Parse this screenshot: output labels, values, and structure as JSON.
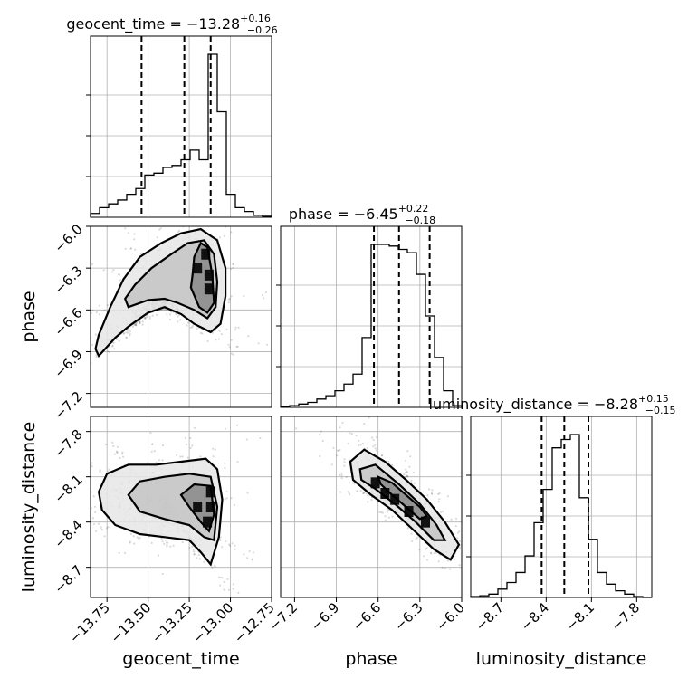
{
  "chart_data": {
    "type": "corner",
    "grid": true,
    "parameters": [
      {
        "name": "geocent_time",
        "median": -13.28,
        "plus": 0.16,
        "minus": 0.26,
        "title_main": "geocent_time = −13.28",
        "title_sup": "+0.16",
        "title_sub": "−0.26",
        "range": [
          -13.85,
          -12.75
        ],
        "ticks": [
          -13.75,
          -13.5,
          -13.25,
          -13.0,
          -12.75
        ],
        "tick_labels": [
          "−13.75",
          "−13.50",
          "−13.25",
          "−13.00",
          "−12.75"
        ],
        "quantiles": [
          -13.54,
          -13.28,
          -13.12
        ],
        "hist_edges": [
          -13.85,
          -13.795,
          -13.74,
          -13.685,
          -13.63,
          -13.575,
          -13.52,
          -13.465,
          -13.41,
          -13.355,
          -13.3,
          -13.245,
          -13.19,
          -13.135,
          -13.08,
          -13.025,
          -12.97,
          -12.915,
          -12.86,
          -12.805,
          -12.75
        ],
        "hist_counts": [
          0.02,
          0.05,
          0.07,
          0.09,
          0.12,
          0.15,
          0.22,
          0.23,
          0.26,
          0.27,
          0.3,
          0.35,
          0.3,
          0.85,
          0.55,
          0.12,
          0.05,
          0.03,
          0.01,
          0.005
        ]
      },
      {
        "name": "phase",
        "median": -6.45,
        "plus": 0.22,
        "minus": 0.18,
        "title_main": "phase = −6.45",
        "title_sup": "+0.22",
        "title_sub": "−0.18",
        "range": [
          -7.3,
          -6.0
        ],
        "ticks": [
          -7.2,
          -6.9,
          -6.6,
          -6.3,
          -6.0
        ],
        "tick_labels": [
          "−7.2",
          "−6.9",
          "−6.6",
          "−6.3",
          "−6.0"
        ],
        "quantiles": [
          -6.63,
          -6.45,
          -6.23
        ],
        "hist_edges": [
          -7.3,
          -7.235,
          -7.17,
          -7.105,
          -7.04,
          -6.975,
          -6.91,
          -6.845,
          -6.78,
          -6.715,
          -6.65,
          -6.585,
          -6.52,
          -6.455,
          -6.39,
          -6.325,
          -6.26,
          -6.195,
          -6.13,
          -6.065,
          -6.0
        ],
        "hist_counts": [
          0.005,
          0.01,
          0.02,
          0.03,
          0.05,
          0.07,
          0.1,
          0.14,
          0.2,
          0.42,
          0.98,
          0.98,
          0.97,
          0.95,
          0.93,
          0.8,
          0.55,
          0.3,
          0.1,
          0.01
        ]
      },
      {
        "name": "luminosity_distance",
        "median": -8.28,
        "plus": 0.15,
        "minus": 0.15,
        "title_main": "luminosity_distance = −8.28",
        "title_sup": "+0.15",
        "title_sub": "−0.15",
        "range": [
          -8.9,
          -7.7
        ],
        "ticks": [
          -8.7,
          -8.4,
          -8.1,
          -7.8
        ],
        "tick_labels": [
          "−8.7",
          "−8.4",
          "−8.1",
          "−7.8"
        ],
        "quantiles": [
          -8.43,
          -8.28,
          -8.12
        ],
        "hist_edges": [
          -8.9,
          -8.84,
          -8.78,
          -8.72,
          -8.66,
          -8.6,
          -8.54,
          -8.48,
          -8.42,
          -8.36,
          -8.3,
          -8.24,
          -8.18,
          -8.12,
          -8.06,
          -8.0,
          -7.94,
          -7.88,
          -7.82,
          -7.76,
          -7.7
        ],
        "hist_counts": [
          0.005,
          0.01,
          0.02,
          0.05,
          0.09,
          0.15,
          0.25,
          0.45,
          0.65,
          0.9,
          0.95,
          0.98,
          0.6,
          0.35,
          0.15,
          0.08,
          0.04,
          0.02,
          0.005,
          0.0
        ]
      }
    ],
    "pairs": [
      {
        "x": "geocent_time",
        "y": "phase",
        "contours": [
          [
            [
              -13.8,
              -6.93
            ],
            [
              -13.7,
              -6.8
            ],
            [
              -13.62,
              -6.72
            ],
            [
              -13.5,
              -6.62
            ],
            [
              -13.4,
              -6.58
            ],
            [
              -13.3,
              -6.63
            ],
            [
              -13.22,
              -6.7
            ],
            [
              -13.12,
              -6.76
            ],
            [
              -13.06,
              -6.7
            ],
            [
              -13.03,
              -6.5
            ],
            [
              -13.03,
              -6.3
            ],
            [
              -13.08,
              -6.1
            ],
            [
              -13.18,
              -6.02
            ],
            [
              -13.3,
              -6.05
            ],
            [
              -13.42,
              -6.12
            ],
            [
              -13.55,
              -6.22
            ],
            [
              -13.65,
              -6.38
            ],
            [
              -13.73,
              -6.58
            ],
            [
              -13.8,
              -6.78
            ],
            [
              -13.82,
              -6.88
            ]
          ],
          [
            [
              -13.62,
              -6.58
            ],
            [
              -13.5,
              -6.53
            ],
            [
              -13.4,
              -6.52
            ],
            [
              -13.32,
              -6.55
            ],
            [
              -13.22,
              -6.6
            ],
            [
              -13.14,
              -6.66
            ],
            [
              -13.09,
              -6.58
            ],
            [
              -13.08,
              -6.4
            ],
            [
              -13.1,
              -6.2
            ],
            [
              -13.16,
              -6.1
            ],
            [
              -13.26,
              -6.12
            ],
            [
              -13.36,
              -6.2
            ],
            [
              -13.48,
              -6.3
            ],
            [
              -13.58,
              -6.42
            ],
            [
              -13.64,
              -6.52
            ]
          ],
          [
            [
              -13.24,
              -6.44
            ],
            [
              -13.19,
              -6.58
            ],
            [
              -13.14,
              -6.62
            ],
            [
              -13.1,
              -6.55
            ],
            [
              -13.11,
              -6.35
            ],
            [
              -13.14,
              -6.15
            ],
            [
              -13.18,
              -6.12
            ],
            [
              -13.22,
              -6.22
            ],
            [
              -13.23,
              -6.35
            ]
          ]
        ],
        "hotspots": [
          [
            -13.13,
            -6.35
          ],
          [
            -13.13,
            -6.45
          ],
          [
            -13.15,
            -6.2
          ],
          [
            -13.2,
            -6.3
          ]
        ]
      },
      {
        "x": "geocent_time",
        "y": "luminosity_distance",
        "contours": [
          [
            [
              -13.8,
              -8.2
            ],
            [
              -13.75,
              -8.08
            ],
            [
              -13.62,
              -8.02
            ],
            [
              -13.45,
              -8.02
            ],
            [
              -13.3,
              -8.0
            ],
            [
              -13.15,
              -7.98
            ],
            [
              -13.08,
              -8.05
            ],
            [
              -13.05,
              -8.25
            ],
            [
              -13.07,
              -8.5
            ],
            [
              -13.12,
              -8.68
            ],
            [
              -13.18,
              -8.6
            ],
            [
              -13.25,
              -8.52
            ],
            [
              -13.4,
              -8.5
            ],
            [
              -13.55,
              -8.48
            ],
            [
              -13.7,
              -8.42
            ],
            [
              -13.78,
              -8.32
            ]
          ],
          [
            [
              -13.62,
              -8.22
            ],
            [
              -13.55,
              -8.13
            ],
            [
              -13.4,
              -8.1
            ],
            [
              -13.25,
              -8.08
            ],
            [
              -13.12,
              -8.1
            ],
            [
              -13.08,
              -8.3
            ],
            [
              -13.1,
              -8.52
            ],
            [
              -13.16,
              -8.5
            ],
            [
              -13.25,
              -8.42
            ],
            [
              -13.4,
              -8.38
            ],
            [
              -13.55,
              -8.33
            ]
          ],
          [
            [
              -13.3,
              -8.22
            ],
            [
              -13.22,
              -8.15
            ],
            [
              -13.12,
              -8.16
            ],
            [
              -13.1,
              -8.35
            ],
            [
              -13.13,
              -8.46
            ],
            [
              -13.18,
              -8.4
            ],
            [
              -13.25,
              -8.3
            ]
          ]
        ],
        "hotspots": [
          [
            -13.12,
            -8.3
          ],
          [
            -13.12,
            -8.2
          ],
          [
            -13.14,
            -8.4
          ],
          [
            -13.2,
            -8.3
          ]
        ]
      },
      {
        "x": "phase",
        "y": "luminosity_distance",
        "contours": [
          [
            [
              -6.8,
              -8.0
            ],
            [
              -6.7,
              -7.92
            ],
            [
              -6.55,
              -8.0
            ],
            [
              -6.4,
              -8.12
            ],
            [
              -6.25,
              -8.25
            ],
            [
              -6.12,
              -8.4
            ],
            [
              -6.02,
              -8.55
            ],
            [
              -6.08,
              -8.65
            ],
            [
              -6.2,
              -8.58
            ],
            [
              -6.35,
              -8.45
            ],
            [
              -6.5,
              -8.32
            ],
            [
              -6.65,
              -8.22
            ],
            [
              -6.78,
              -8.12
            ]
          ],
          [
            [
              -6.73,
              -8.05
            ],
            [
              -6.62,
              -8.02
            ],
            [
              -6.45,
              -8.15
            ],
            [
              -6.3,
              -8.28
            ],
            [
              -6.18,
              -8.42
            ],
            [
              -6.12,
              -8.52
            ],
            [
              -6.2,
              -8.52
            ],
            [
              -6.33,
              -8.4
            ],
            [
              -6.48,
              -8.28
            ],
            [
              -6.62,
              -8.18
            ],
            [
              -6.72,
              -8.12
            ]
          ],
          [
            [
              -6.6,
              -8.1
            ],
            [
              -6.5,
              -8.14
            ],
            [
              -6.4,
              -8.22
            ],
            [
              -6.3,
              -8.3
            ],
            [
              -6.25,
              -8.36
            ],
            [
              -6.3,
              -8.38
            ],
            [
              -6.4,
              -8.3
            ],
            [
              -6.5,
              -8.22
            ],
            [
              -6.58,
              -8.15
            ]
          ]
        ],
        "hotspots": [
          [
            -6.62,
            -8.14
          ],
          [
            -6.55,
            -8.21
          ],
          [
            -6.48,
            -8.25
          ],
          [
            -6.38,
            -8.33
          ],
          [
            -6.26,
            -8.4
          ]
        ]
      }
    ]
  }
}
